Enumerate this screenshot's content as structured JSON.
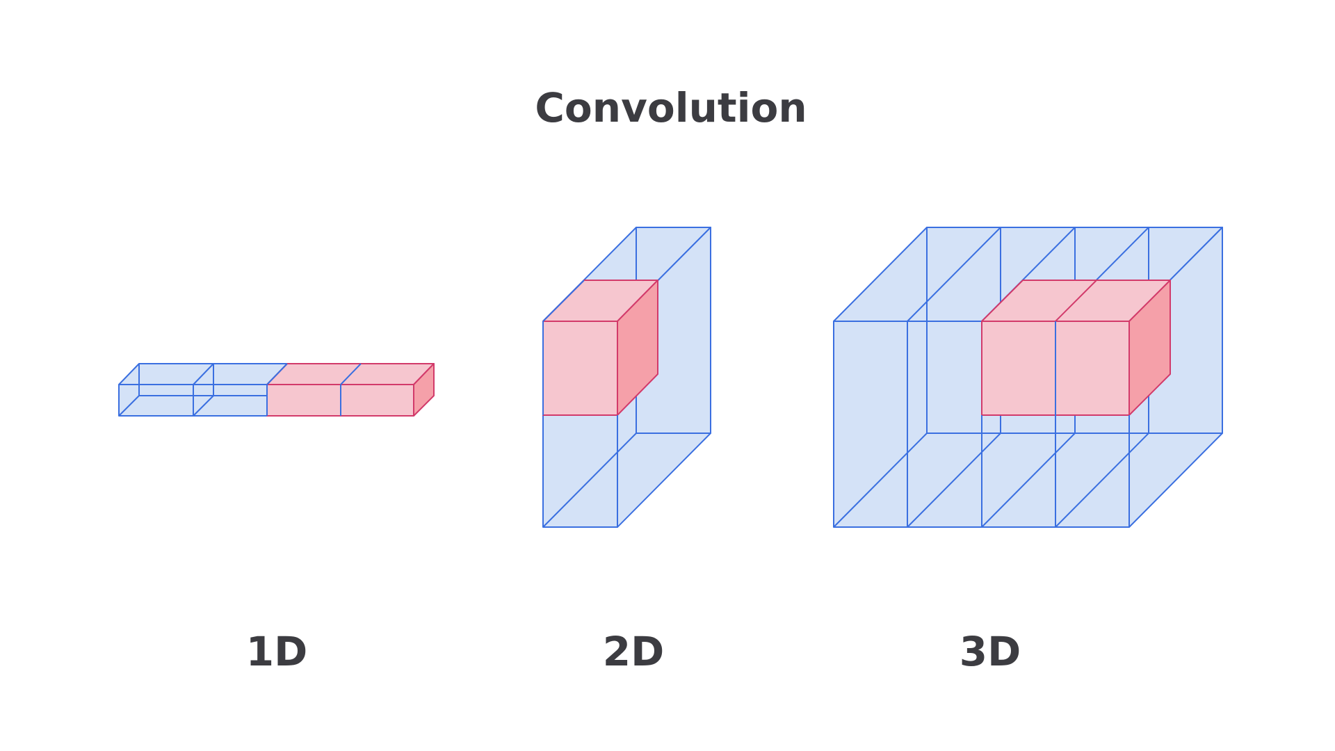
{
  "title": "Convolution",
  "panels": [
    {
      "id": "1d",
      "label": "1D"
    },
    {
      "id": "2d",
      "label": "2D"
    },
    {
      "id": "3d",
      "label": "3D"
    }
  ],
  "colors": {
    "input_fill": "#d4e2f7",
    "input_stroke": "#3a6fe0",
    "kernel_front": "#f6c6cf",
    "kernel_side": "#f5a0a9",
    "kernel_stroke": "#d23a6a",
    "text": "#3c3c41"
  }
}
